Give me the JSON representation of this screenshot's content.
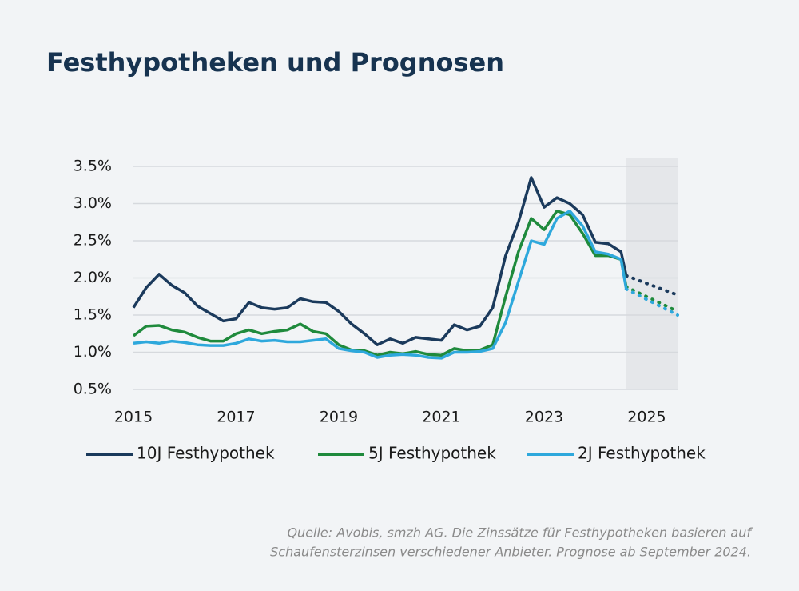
{
  "chart_data": {
    "type": "line",
    "title": "Festhypotheken und Prognosen",
    "x": [
      2015.0,
      2015.25,
      2015.5,
      2015.75,
      2016.0,
      2016.25,
      2016.5,
      2016.75,
      2017.0,
      2017.25,
      2017.5,
      2017.75,
      2018.0,
      2018.25,
      2018.5,
      2018.75,
      2019.0,
      2019.25,
      2019.5,
      2019.75,
      2020.0,
      2020.25,
      2020.5,
      2020.75,
      2021.0,
      2021.25,
      2021.5,
      2021.75,
      2022.0,
      2022.25,
      2022.5,
      2022.75,
      2023.0,
      2023.25,
      2023.5,
      2023.75,
      2024.0,
      2024.25,
      2024.5,
      2024.6
    ],
    "forecast_x": [
      2024.6,
      2025.6
    ],
    "series": [
      {
        "name": "10J Festhypothek",
        "color": "#1b3a5c",
        "values": [
          1.6,
          1.87,
          2.05,
          1.9,
          1.8,
          1.62,
          1.52,
          1.42,
          1.45,
          1.67,
          1.6,
          1.58,
          1.6,
          1.72,
          1.68,
          1.67,
          1.55,
          1.38,
          1.25,
          1.1,
          1.18,
          1.12,
          1.2,
          1.18,
          1.16,
          1.37,
          1.3,
          1.35,
          1.6,
          2.3,
          2.75,
          3.35,
          2.95,
          3.08,
          3.0,
          2.85,
          2.48,
          2.46,
          2.35,
          2.03
        ],
        "forecast_values": [
          2.03,
          1.77
        ]
      },
      {
        "name": "5J Festhypothek",
        "color": "#1f8a3c",
        "values": [
          1.22,
          1.35,
          1.36,
          1.3,
          1.27,
          1.2,
          1.15,
          1.15,
          1.25,
          1.3,
          1.25,
          1.28,
          1.3,
          1.38,
          1.28,
          1.25,
          1.1,
          1.03,
          1.02,
          0.96,
          1.0,
          0.98,
          1.01,
          0.97,
          0.96,
          1.05,
          1.02,
          1.03,
          1.1,
          1.75,
          2.35,
          2.8,
          2.65,
          2.9,
          2.85,
          2.6,
          2.3,
          2.3,
          2.25,
          1.88
        ],
        "forecast_values": [
          1.88,
          1.55
        ]
      },
      {
        "name": "2J Festhypothek",
        "color": "#2ea8dc",
        "values": [
          1.12,
          1.14,
          1.12,
          1.15,
          1.13,
          1.1,
          1.09,
          1.09,
          1.12,
          1.18,
          1.15,
          1.16,
          1.14,
          1.14,
          1.16,
          1.18,
          1.05,
          1.02,
          1.0,
          0.93,
          0.96,
          0.97,
          0.96,
          0.93,
          0.92,
          1.0,
          1.0,
          1.01,
          1.05,
          1.4,
          1.95,
          2.5,
          2.45,
          2.8,
          2.9,
          2.7,
          2.35,
          2.32,
          2.25,
          1.85
        ],
        "forecast_values": [
          1.85,
          1.5
        ]
      }
    ],
    "xlim": [
      2015,
      2025.6
    ],
    "xticks": [
      2015,
      2017,
      2019,
      2021,
      2023,
      2025
    ],
    "ylim": [
      0.5,
      3.5
    ],
    "yticks": [
      {
        "value": 0.5,
        "label": "0.5%"
      },
      {
        "value": 1.0,
        "label": "1.0%"
      },
      {
        "value": 1.5,
        "label": "1.5%"
      },
      {
        "value": 2.0,
        "label": "2.0%"
      },
      {
        "value": 2.5,
        "label": "2.5%"
      },
      {
        "value": 3.0,
        "label": "3.0%"
      },
      {
        "value": 3.5,
        "label": "3.5%"
      }
    ],
    "grid": true,
    "legend": "bottom",
    "source": [
      "Quelle: Avobis, smzh AG. Die Zinssätze für Festhypotheken basieren auf",
      "Schaufensterzinsen verschiedener Anbieter. Prognose ab September 2024."
    ]
  }
}
